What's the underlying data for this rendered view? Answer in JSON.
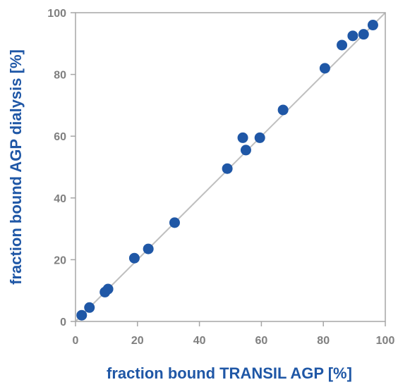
{
  "chart_data": {
    "type": "scatter",
    "title": "",
    "xlabel": "fraction bound TRANSIL AGP [%]",
    "ylabel": "fraction bound AGP dialysis [%]",
    "xlim": [
      0,
      100
    ],
    "ylim": [
      0,
      100
    ],
    "xticks": [
      0,
      20,
      40,
      60,
      80,
      100
    ],
    "yticks": [
      0,
      20,
      40,
      60,
      80,
      100
    ],
    "grid": false,
    "legend": "none",
    "reference_line": {
      "type": "identity",
      "from": [
        0,
        0
      ],
      "to": [
        100,
        100
      ],
      "color": "#bfbfbf"
    },
    "marker_color": "#1f57a6",
    "axis_color": "#a6a6a6",
    "tick_label_color": "#7f7f7f",
    "label_color": "#1f57a6",
    "series": [
      {
        "x": [
          2,
          4.5,
          9.5,
          10.5,
          19,
          23.5,
          32,
          49,
          54,
          55,
          59.5,
          67,
          80.5,
          86,
          89.5,
          93,
          96
        ],
        "y": [
          2,
          4.5,
          9.5,
          10.5,
          20.5,
          23.5,
          32,
          49.5,
          59.5,
          55.5,
          59.5,
          68.5,
          82,
          89.5,
          92.5,
          93,
          96
        ]
      }
    ]
  }
}
